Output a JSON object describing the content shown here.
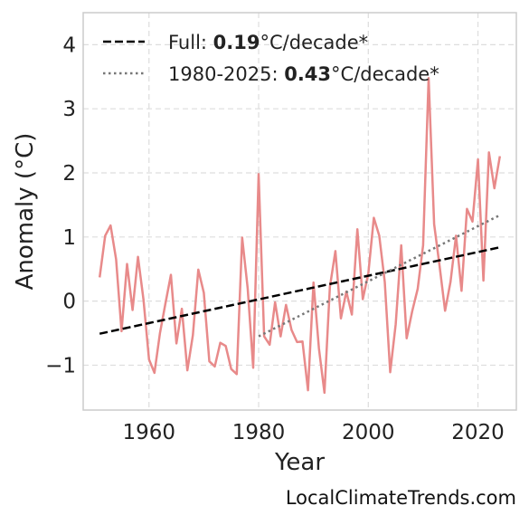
{
  "chart_data": {
    "type": "line",
    "xlabel": "Year",
    "ylabel": "Anomaly (°C)",
    "xlim": [
      1948,
      2027
    ],
    "ylim": [
      -1.7,
      4.5
    ],
    "x_ticks": [
      1960,
      1980,
      2000,
      2020
    ],
    "y_ticks": [
      4,
      3,
      2,
      1,
      0,
      -1
    ],
    "y_tick_labels": [
      "4",
      "3",
      "2",
      "1",
      "0",
      "−1"
    ],
    "grid": true,
    "legend_position": "top-left",
    "series": [
      {
        "color": "#e88a8a",
        "style": "solid",
        "x": [
          1951,
          1952,
          1953,
          1954,
          1955,
          1956,
          1957,
          1958,
          1959,
          1960,
          1961,
          1962,
          1963,
          1964,
          1965,
          1966,
          1967,
          1968,
          1969,
          1970,
          1971,
          1972,
          1973,
          1974,
          1975,
          1976,
          1977,
          1978,
          1979,
          1980,
          1981,
          1982,
          1983,
          1984,
          1985,
          1986,
          1987,
          1988,
          1989,
          1990,
          1991,
          1992,
          1993,
          1994,
          1995,
          1996,
          1997,
          1998,
          1999,
          2000,
          2001,
          2002,
          2003,
          2004,
          2005,
          2006,
          2007,
          2008,
          2009,
          2010,
          2011,
          2012,
          2013,
          2014,
          2015,
          2016,
          2017,
          2018,
          2019,
          2020,
          2021,
          2022,
          2023,
          2024
        ],
        "y": [
          0.37,
          1.02,
          1.18,
          0.65,
          -0.47,
          0.58,
          -0.14,
          0.69,
          0.02,
          -0.91,
          -1.12,
          -0.5,
          -0.04,
          0.41,
          -0.66,
          -0.12,
          -1.08,
          -0.53,
          0.49,
          0.13,
          -0.94,
          -1.02,
          -0.65,
          -0.7,
          -1.06,
          -1.14,
          0.99,
          0.2,
          -1.04,
          1.98,
          -0.55,
          -0.68,
          -0.02,
          -0.55,
          -0.06,
          -0.45,
          -0.64,
          -0.63,
          -1.39,
          0.29,
          -0.74,
          -1.43,
          0.22,
          0.78,
          -0.27,
          0.15,
          -0.21,
          1.12,
          0.03,
          0.43,
          1.3,
          1.02,
          0.3,
          -1.11,
          -0.36,
          0.87,
          -0.58,
          -0.16,
          0.19,
          0.87,
          3.48,
          1.2,
          0.55,
          -0.15,
          0.3,
          1.02,
          0.16,
          1.44,
          1.24,
          2.21,
          0.32,
          2.32,
          1.76,
          2.26
        ]
      },
      {
        "name": "Full: 0.19°C/decade*",
        "color": "#000000",
        "style": "dashed",
        "x": [
          1951,
          2024
        ],
        "y": [
          -0.51,
          0.84
        ]
      },
      {
        "name": "1980-2025: 0.43°C/decade*",
        "color": "#777777",
        "style": "dotted",
        "x": [
          1980,
          2024
        ],
        "y": [
          -0.55,
          1.34
        ]
      }
    ]
  },
  "legend": {
    "full_prefix": "Full: ",
    "full_value": "0.19",
    "full_suffix": "°C/decade*",
    "recent_prefix": "1980-2025: ",
    "recent_value": "0.43",
    "recent_suffix": "°C/decade*"
  },
  "watermark": "LocalClimateTrends.com"
}
